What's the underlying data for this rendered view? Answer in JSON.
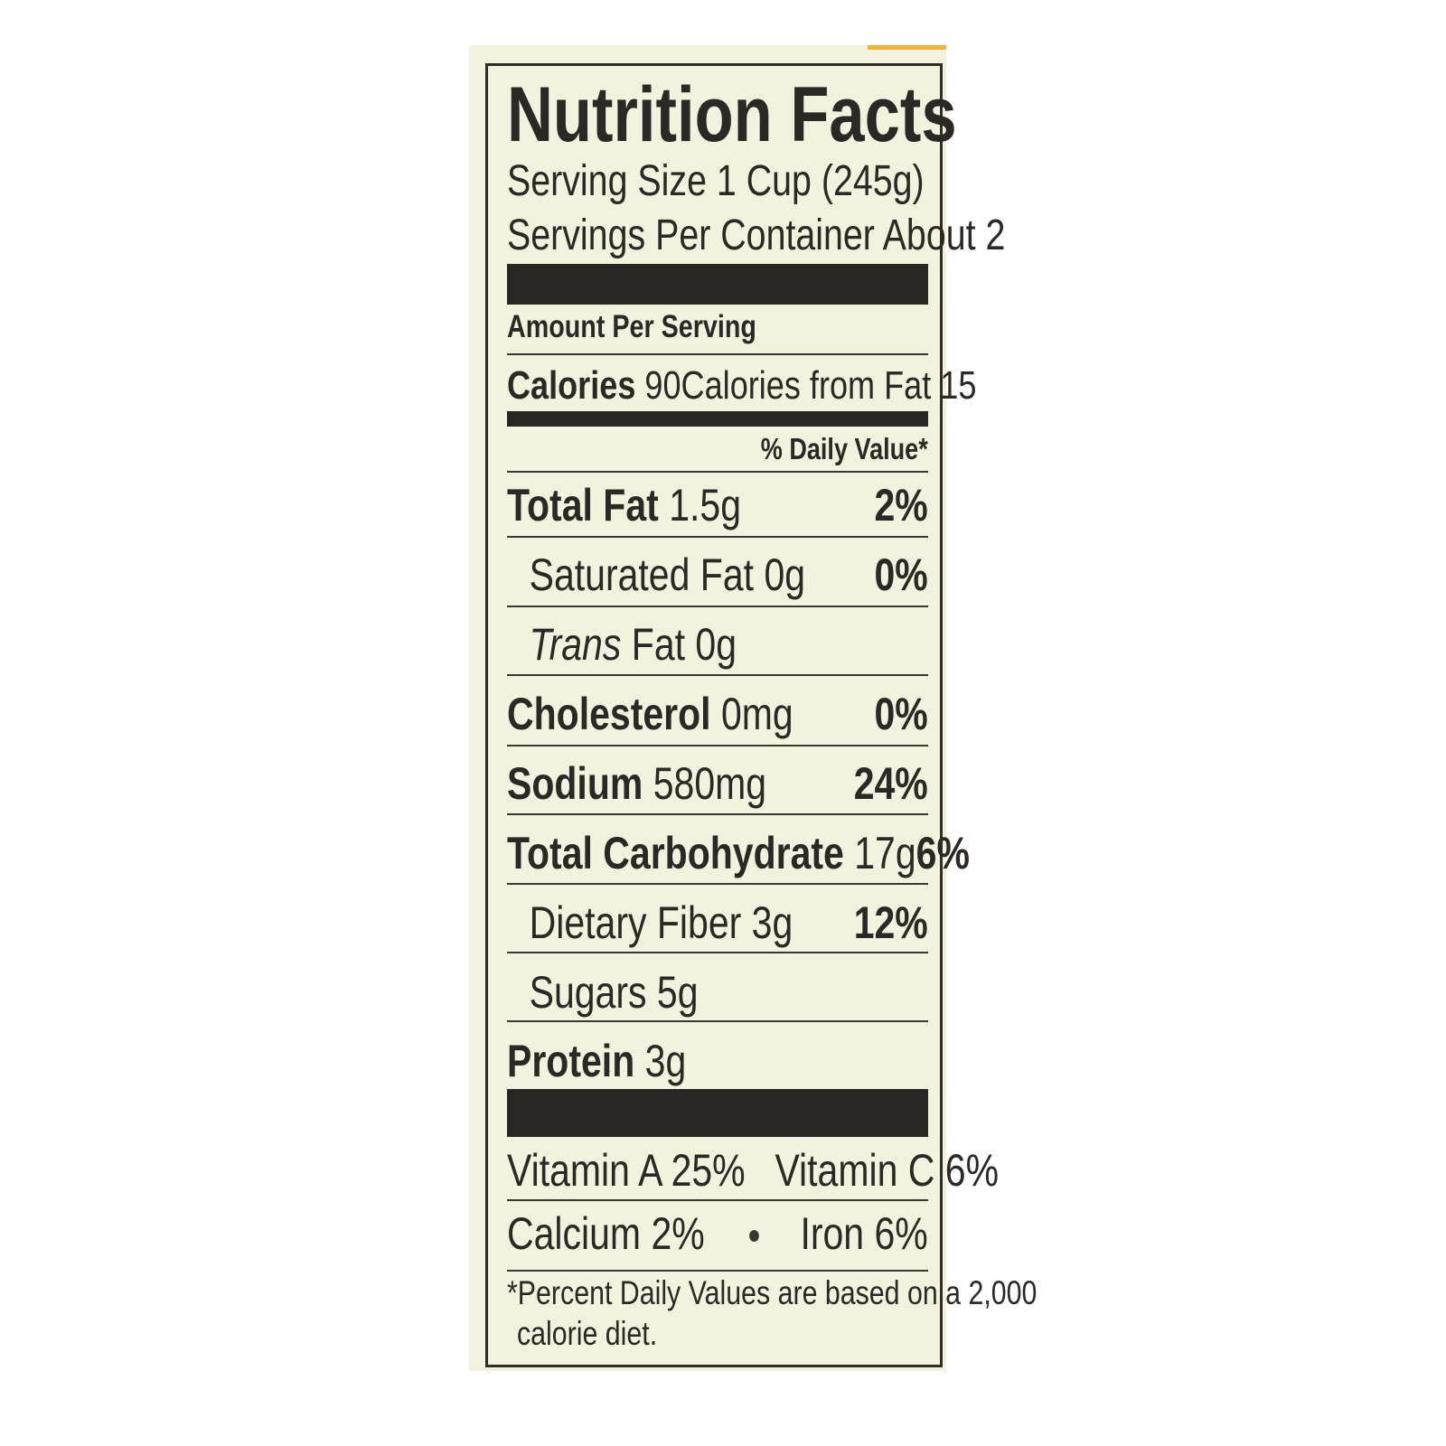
{
  "label": {
    "title": "Nutrition Facts",
    "serving_size": "Serving Size 1 Cup (245g)",
    "servings_per_container": "Servings Per Container About 2",
    "amount_per_serving": "Amount Per Serving",
    "calories_label": "Calories",
    "calories_value": "90",
    "calories_from_fat": "Calories from Fat 15",
    "daily_value_header": "% Daily Value*",
    "nutrients": [
      {
        "name": "Total Fat",
        "amount": "1.5g",
        "dv": "2%"
      },
      {
        "name": "Saturated Fat",
        "amount": "0g",
        "dv": "0%"
      },
      {
        "name": "Trans",
        "amount": "Fat 0g",
        "dv": ""
      },
      {
        "name": "Cholesterol",
        "amount": "0mg",
        "dv": "0%"
      },
      {
        "name": "Sodium",
        "amount": "580mg",
        "dv": "24%"
      },
      {
        "name": "Total Carbohydrate",
        "amount": "17g",
        "dv": "6%"
      },
      {
        "name": "Dietary Fiber",
        "amount": "3g",
        "dv": "12%"
      },
      {
        "name": "Sugars",
        "amount": "5g",
        "dv": ""
      },
      {
        "name": "Protein",
        "amount": "3g",
        "dv": ""
      }
    ],
    "vitamins": {
      "vitamin_a": "Vitamin A 25%",
      "vitamin_c": "Vitamin C 6%",
      "calcium": "Calcium 2%",
      "iron": "Iron 6%"
    },
    "footnote_line1": "*Percent Daily Values are based on a 2,000",
    "footnote_line2": "calorie diet.",
    "colors": {
      "background": "#f3f2de",
      "ink": "#2b2826",
      "accent": "#f0b43c"
    }
  }
}
